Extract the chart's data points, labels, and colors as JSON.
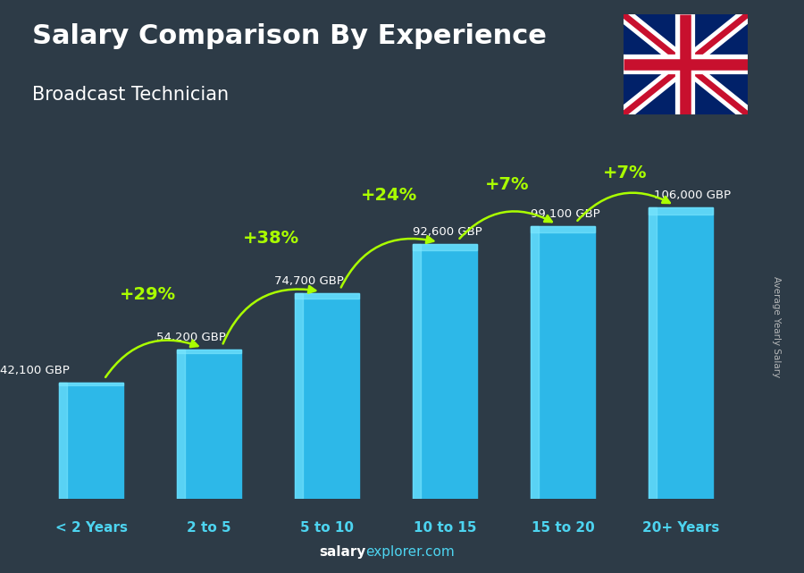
{
  "title": "Salary Comparison By Experience",
  "subtitle": "Broadcast Technician",
  "categories": [
    "< 2 Years",
    "2 to 5",
    "5 to 10",
    "10 to 15",
    "15 to 20",
    "20+ Years"
  ],
  "values": [
    42100,
    54200,
    74700,
    92600,
    99100,
    106000
  ],
  "value_labels": [
    "42,100 GBP",
    "54,200 GBP",
    "74,700 GBP",
    "92,600 GBP",
    "99,100 GBP",
    "106,000 GBP"
  ],
  "pct_labels": [
    "+29%",
    "+38%",
    "+24%",
    "+7%",
    "+7%"
  ],
  "bar_color": "#2db8e8",
  "bar_edge_color": "#55d4f8",
  "bar_highlight": "#7ee8ff",
  "bg_color": "#2d3b47",
  "title_color": "#ffffff",
  "subtitle_color": "#ffffff",
  "val_label_color": "#ffffff",
  "pct_color": "#aaff00",
  "arrow_color": "#aaff00",
  "xticklabel_color": "#4dd4f0",
  "ylabel_text": "Average Yearly Salary",
  "footer_salary_color": "#ffffff",
  "footer_explorer_color": "#4dd4f0",
  "ylim_max": 125000,
  "bar_width": 0.55
}
